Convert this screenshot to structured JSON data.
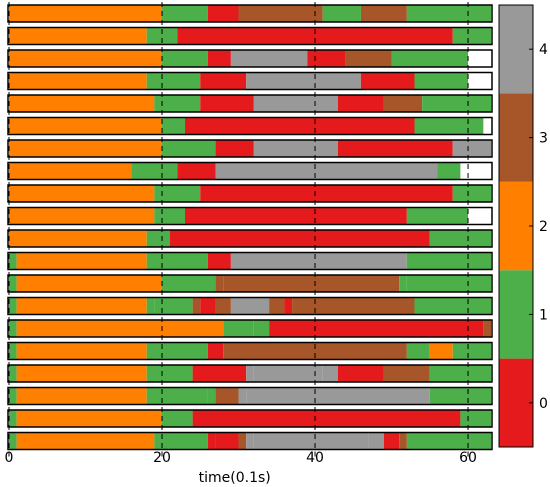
{
  "chart_data": {
    "type": "bar",
    "orientation": "horizontal-stacked",
    "xlabel": "time(0.1s)",
    "xlim": [
      0,
      63
    ],
    "xticks": [
      "0",
      "20",
      "40",
      "60"
    ],
    "vlines": [
      0,
      20,
      40,
      60
    ],
    "colorbar": {
      "ticks": [
        "0",
        "1",
        "2",
        "3",
        "4"
      ],
      "levels": [
        {
          "value": 0,
          "color": "#e41a1c"
        },
        {
          "value": 1,
          "color": "#4daf4a"
        },
        {
          "value": 2,
          "color": "#ff7f00"
        },
        {
          "value": 3,
          "color": "#a65628"
        },
        {
          "value": 4,
          "color": "#999999"
        }
      ]
    },
    "series": [
      {
        "segments": [
          [
            0,
            20,
            2
          ],
          [
            20,
            26,
            1
          ],
          [
            26,
            30,
            0
          ],
          [
            30,
            41,
            3
          ],
          [
            41,
            46,
            1
          ],
          [
            46,
            52,
            3
          ],
          [
            52,
            63,
            1
          ]
        ]
      },
      {
        "segments": [
          [
            0,
            18,
            2
          ],
          [
            18,
            22,
            1
          ],
          [
            22,
            58,
            0
          ],
          [
            58,
            63,
            1
          ]
        ]
      },
      {
        "segments": [
          [
            0,
            20,
            2
          ],
          [
            20,
            26,
            1
          ],
          [
            26,
            29,
            0
          ],
          [
            29,
            39,
            4
          ],
          [
            39,
            44,
            0
          ],
          [
            44,
            50,
            3
          ],
          [
            50,
            60,
            1
          ]
        ]
      },
      {
        "segments": [
          [
            0,
            18,
            2
          ],
          [
            18,
            25,
            1
          ],
          [
            25,
            31,
            0
          ],
          [
            31,
            46,
            4
          ],
          [
            46,
            53,
            0
          ],
          [
            53,
            60,
            1
          ]
        ]
      },
      {
        "segments": [
          [
            0,
            19,
            2
          ],
          [
            19,
            25,
            1
          ],
          [
            25,
            32,
            0
          ],
          [
            32,
            43,
            4
          ],
          [
            43,
            49,
            0
          ],
          [
            49,
            54,
            3
          ],
          [
            54,
            63,
            1
          ]
        ]
      },
      {
        "segments": [
          [
            0,
            20,
            2
          ],
          [
            20,
            23,
            1
          ],
          [
            23,
            53,
            0
          ],
          [
            53,
            62,
            1
          ]
        ]
      },
      {
        "segments": [
          [
            0,
            20,
            2
          ],
          [
            20,
            27,
            1
          ],
          [
            27,
            32,
            0
          ],
          [
            32,
            43,
            4
          ],
          [
            43,
            58,
            0
          ],
          [
            58,
            63,
            4
          ]
        ]
      },
      {
        "segments": [
          [
            0,
            16,
            2
          ],
          [
            16,
            22,
            1
          ],
          [
            22,
            27,
            0
          ],
          [
            27,
            56,
            4
          ],
          [
            56,
            59,
            1
          ]
        ]
      },
      {
        "segments": [
          [
            0,
            19,
            2
          ],
          [
            19,
            25,
            1
          ],
          [
            25,
            58,
            0
          ],
          [
            58,
            63,
            1
          ]
        ]
      },
      {
        "segments": [
          [
            0,
            19,
            2
          ],
          [
            19,
            23,
            1
          ],
          [
            23,
            52,
            0
          ],
          [
            52,
            60,
            1
          ]
        ]
      },
      {
        "segments": [
          [
            0,
            18,
            2
          ],
          [
            18,
            21,
            1
          ],
          [
            21,
            55,
            0
          ],
          [
            55,
            63,
            1
          ]
        ]
      },
      {
        "segments": [
          [
            0,
            1,
            1
          ],
          [
            1,
            18,
            2
          ],
          [
            18,
            26,
            1
          ],
          [
            26,
            29,
            0
          ],
          [
            29,
            30,
            4
          ],
          [
            30,
            52,
            4
          ],
          [
            52,
            63,
            1
          ]
        ]
      },
      {
        "segments": [
          [
            0,
            1,
            1
          ],
          [
            1,
            20,
            2
          ],
          [
            20,
            27,
            1
          ],
          [
            27,
            28,
            3
          ],
          [
            28,
            51,
            3
          ],
          [
            51,
            52,
            1
          ],
          [
            52,
            63,
            1
          ]
        ]
      },
      {
        "segments": [
          [
            0,
            1,
            1
          ],
          [
            1,
            18,
            2
          ],
          [
            18,
            19,
            1
          ],
          [
            19,
            24,
            1
          ],
          [
            24,
            25,
            3
          ],
          [
            25,
            27,
            0
          ],
          [
            27,
            29,
            3
          ],
          [
            29,
            30,
            4
          ],
          [
            30,
            34,
            4
          ],
          [
            34,
            36,
            3
          ],
          [
            36,
            37,
            0
          ],
          [
            37,
            53,
            3
          ],
          [
            53,
            63,
            1
          ]
        ]
      },
      {
        "segments": [
          [
            0,
            1,
            1
          ],
          [
            1,
            28,
            2
          ],
          [
            28,
            30,
            1
          ],
          [
            30,
            32,
            1
          ],
          [
            32,
            34,
            1
          ],
          [
            34,
            62,
            0
          ],
          [
            62,
            63,
            3
          ]
        ]
      },
      {
        "segments": [
          [
            0,
            1,
            1
          ],
          [
            1,
            18,
            2
          ],
          [
            18,
            26,
            1
          ],
          [
            26,
            28,
            0
          ],
          [
            28,
            52,
            3
          ],
          [
            52,
            55,
            1
          ],
          [
            55,
            58,
            2
          ],
          [
            58,
            63,
            1
          ]
        ]
      },
      {
        "segments": [
          [
            0,
            1,
            1
          ],
          [
            1,
            18,
            2
          ],
          [
            18,
            24,
            1
          ],
          [
            24,
            31,
            0
          ],
          [
            31,
            32,
            4
          ],
          [
            32,
            41,
            4
          ],
          [
            41,
            43,
            4
          ],
          [
            43,
            49,
            0
          ],
          [
            49,
            55,
            3
          ],
          [
            55,
            63,
            1
          ]
        ]
      },
      {
        "segments": [
          [
            0,
            1,
            1
          ],
          [
            1,
            18,
            2
          ],
          [
            18,
            26,
            1
          ],
          [
            26,
            27,
            1
          ],
          [
            27,
            30,
            3
          ],
          [
            30,
            31,
            4
          ],
          [
            31,
            55,
            4
          ],
          [
            55,
            63,
            1
          ]
        ]
      },
      {
        "segments": [
          [
            0,
            1,
            1
          ],
          [
            1,
            20,
            2
          ],
          [
            20,
            24,
            1
          ],
          [
            24,
            59,
            0
          ],
          [
            59,
            63,
            1
          ]
        ]
      },
      {
        "segments": [
          [
            0,
            1,
            1
          ],
          [
            1,
            19,
            2
          ],
          [
            19,
            20,
            1
          ],
          [
            20,
            26,
            1
          ],
          [
            26,
            27,
            0
          ],
          [
            27,
            30,
            0
          ],
          [
            30,
            31,
            3
          ],
          [
            31,
            32,
            4
          ],
          [
            32,
            47,
            4
          ],
          [
            47,
            49,
            4
          ],
          [
            49,
            51,
            0
          ],
          [
            51,
            52,
            3
          ],
          [
            52,
            63,
            1
          ]
        ]
      }
    ]
  }
}
